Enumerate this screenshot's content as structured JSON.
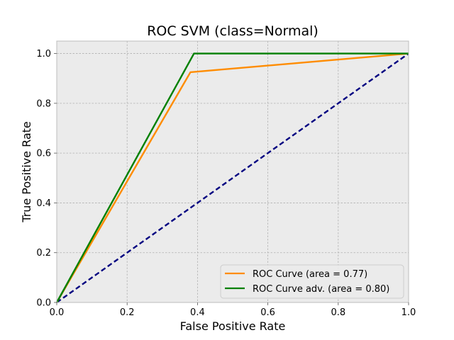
{
  "chart_data": {
    "type": "line",
    "title": "ROC SVM (class=Normal)",
    "xlabel": "False Positive Rate",
    "ylabel": "True Positive Rate",
    "xlim": [
      0.0,
      1.0
    ],
    "ylim": [
      0.0,
      1.05
    ],
    "xticks": [
      "0.0",
      "0.2",
      "0.4",
      "0.6",
      "0.8",
      "1.0"
    ],
    "yticks": [
      "0.0",
      "0.2",
      "0.4",
      "0.6",
      "0.8",
      "1.0"
    ],
    "grid": true,
    "legend_position": "lower-right",
    "series": [
      {
        "name": "ROC Curve (area = 0.77)",
        "color": "#ff8c00",
        "style": "solid",
        "x": [
          0.0,
          0.38,
          1.0
        ],
        "y": [
          0.0,
          0.925,
          1.0
        ]
      },
      {
        "name": "ROC Curve adv. (area = 0.80)",
        "color": "#008000",
        "style": "solid",
        "x": [
          0.0,
          0.39,
          1.0
        ],
        "y": [
          0.0,
          1.0,
          1.0
        ]
      },
      {
        "color": "#000080",
        "style": "dashed",
        "x": [
          0.0,
          1.0
        ],
        "y": [
          0.0,
          1.0
        ]
      }
    ]
  }
}
